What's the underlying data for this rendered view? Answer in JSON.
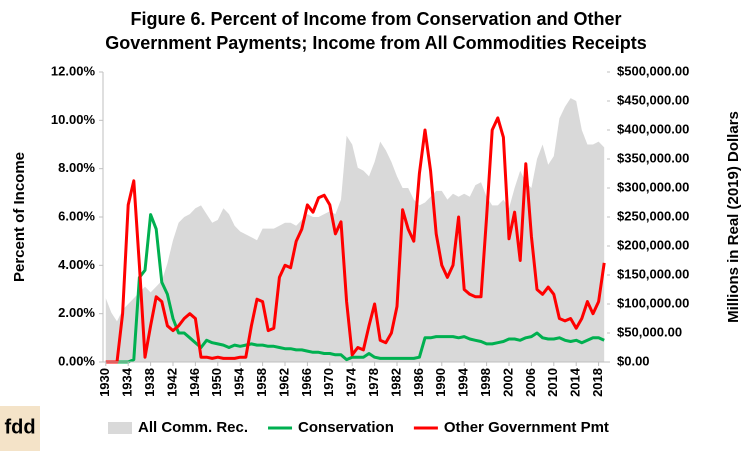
{
  "chart_data": {
    "type": "line",
    "title": [
      "Figure 6. Percent of Income from Conservation and Other",
      "Government Payments; Income from All Commodities Receipts"
    ],
    "ylabel": "Percent of Income",
    "y2label": "Millions in Real (2019) Dollars",
    "logo": "fdd",
    "x": [
      1930,
      1931,
      1932,
      1933,
      1934,
      1935,
      1936,
      1937,
      1938,
      1939,
      1940,
      1941,
      1942,
      1943,
      1944,
      1945,
      1946,
      1947,
      1948,
      1949,
      1950,
      1951,
      1952,
      1953,
      1954,
      1955,
      1956,
      1957,
      1958,
      1959,
      1960,
      1961,
      1962,
      1963,
      1964,
      1965,
      1966,
      1967,
      1968,
      1969,
      1970,
      1971,
      1972,
      1973,
      1974,
      1975,
      1976,
      1977,
      1978,
      1979,
      1980,
      1981,
      1982,
      1983,
      1984,
      1985,
      1986,
      1987,
      1988,
      1989,
      1990,
      1991,
      1992,
      1993,
      1994,
      1995,
      1996,
      1997,
      1998,
      1999,
      2000,
      2001,
      2002,
      2003,
      2004,
      2005,
      2006,
      2007,
      2008,
      2009,
      2010,
      2011,
      2012,
      2013,
      2014,
      2015,
      2016,
      2017,
      2018,
      2019
    ],
    "xlim": [
      1929.5,
      2019.5
    ],
    "xticks": [
      1930,
      1934,
      1938,
      1942,
      1946,
      1950,
      1954,
      1958,
      1962,
      1966,
      1970,
      1974,
      1978,
      1982,
      1986,
      1990,
      1994,
      1998,
      2002,
      2006,
      2010,
      2014,
      2018
    ],
    "ylim": [
      0,
      12
    ],
    "yticks": [
      {
        "value": 0,
        "label": "0.00%"
      },
      {
        "value": 2,
        "label": "2.00%"
      },
      {
        "value": 4,
        "label": "4.00%"
      },
      {
        "value": 6,
        "label": "6.00%"
      },
      {
        "value": 8,
        "label": "8.00%"
      },
      {
        "value": 10,
        "label": "10.00%"
      },
      {
        "value": 12,
        "label": "12.00%"
      }
    ],
    "y2lim": [
      0,
      500000
    ],
    "y2ticks": [
      {
        "value": 0,
        "label": "$0.00"
      },
      {
        "value": 50000,
        "label": "$50,000.00"
      },
      {
        "value": 100000,
        "label": "$100,000.00"
      },
      {
        "value": 150000,
        "label": "$150,000.00"
      },
      {
        "value": 200000,
        "label": "$200,000.00"
      },
      {
        "value": 250000,
        "label": "$250,000.00"
      },
      {
        "value": 300000,
        "label": "$300,000.00"
      },
      {
        "value": 350000,
        "label": "$350,000.00"
      },
      {
        "value": 400000,
        "label": "$400,000.00"
      },
      {
        "value": 450000,
        "label": "$450,000.00"
      },
      {
        "value": 500000,
        "label": "$500,000.00"
      }
    ],
    "grid": false,
    "legend": "bottom",
    "series": [
      {
        "name": "All Comm. Rec.",
        "color": "#d9d9d9",
        "kind": "area",
        "axis": "y2",
        "values": [
          110000,
          85000,
          70000,
          90000,
          100000,
          110000,
          120000,
          130000,
          120000,
          130000,
          140000,
          170000,
          210000,
          240000,
          250000,
          255000,
          265000,
          270000,
          255000,
          240000,
          245000,
          265000,
          255000,
          235000,
          225000,
          220000,
          215000,
          210000,
          230000,
          230000,
          230000,
          235000,
          240000,
          240000,
          235000,
          245000,
          255000,
          250000,
          250000,
          255000,
          260000,
          255000,
          280000,
          390000,
          375000,
          335000,
          330000,
          320000,
          345000,
          380000,
          365000,
          345000,
          320000,
          300000,
          300000,
          280000,
          270000,
          275000,
          285000,
          295000,
          295000,
          280000,
          290000,
          285000,
          290000,
          285000,
          305000,
          310000,
          285000,
          270000,
          270000,
          280000,
          265000,
          300000,
          330000,
          310000,
          300000,
          350000,
          375000,
          340000,
          355000,
          420000,
          440000,
          455000,
          450000,
          400000,
          375000,
          375000,
          380000,
          370000
        ]
      },
      {
        "name": "Conservation",
        "color": "#00b050",
        "kind": "line",
        "values": [
          0,
          0,
          0,
          0,
          0,
          0.1,
          3.5,
          3.8,
          6.1,
          5.5,
          3.3,
          2.8,
          1.8,
          1.2,
          1.2,
          1.0,
          0.8,
          0.6,
          0.9,
          0.8,
          0.75,
          0.7,
          0.6,
          0.7,
          0.65,
          0.7,
          0.75,
          0.7,
          0.7,
          0.65,
          0.65,
          0.6,
          0.55,
          0.55,
          0.5,
          0.5,
          0.45,
          0.4,
          0.4,
          0.35,
          0.35,
          0.3,
          0.3,
          0.1,
          0.2,
          0.2,
          0.2,
          0.35,
          0.2,
          0.15,
          0.15,
          0.15,
          0.15,
          0.15,
          0.15,
          0.15,
          0.2,
          1.0,
          1.0,
          1.05,
          1.05,
          1.05,
          1.05,
          1.0,
          1.05,
          0.95,
          0.9,
          0.85,
          0.75,
          0.75,
          0.8,
          0.85,
          0.95,
          0.95,
          0.9,
          1.0,
          1.05,
          1.2,
          1.0,
          0.95,
          0.95,
          1.0,
          0.9,
          0.85,
          0.9,
          0.8,
          0.9,
          1.0,
          1.0,
          0.9
        ]
      },
      {
        "name": "Other Government Pmt",
        "color": "#ff0000",
        "kind": "line",
        "values": [
          0,
          0,
          0,
          2.0,
          6.5,
          7.5,
          4.0,
          0.2,
          1.5,
          2.7,
          2.5,
          1.5,
          1.3,
          1.5,
          1.8,
          2.0,
          1.8,
          0.2,
          0.2,
          0.15,
          0.2,
          0.15,
          0.15,
          0.15,
          0.2,
          0.2,
          1.5,
          2.6,
          2.5,
          1.3,
          1.4,
          3.5,
          4.0,
          3.9,
          5.0,
          5.5,
          6.5,
          6.2,
          6.8,
          6.9,
          6.5,
          5.3,
          5.8,
          2.5,
          0.3,
          0.6,
          0.5,
          1.5,
          2.4,
          0.9,
          0.8,
          1.2,
          2.3,
          6.3,
          5.5,
          5.0,
          7.8,
          9.6,
          7.9,
          5.3,
          4.0,
          3.5,
          4.0,
          6.0,
          3.0,
          2.8,
          2.7,
          2.7,
          6.0,
          9.6,
          10.1,
          9.3,
          5.1,
          6.2,
          4.2,
          8.2,
          5.2,
          3.0,
          2.8,
          3.1,
          2.8,
          1.8,
          1.7,
          1.8,
          1.4,
          1.8,
          2.5,
          2.0,
          2.5,
          4.1
        ]
      }
    ]
  }
}
